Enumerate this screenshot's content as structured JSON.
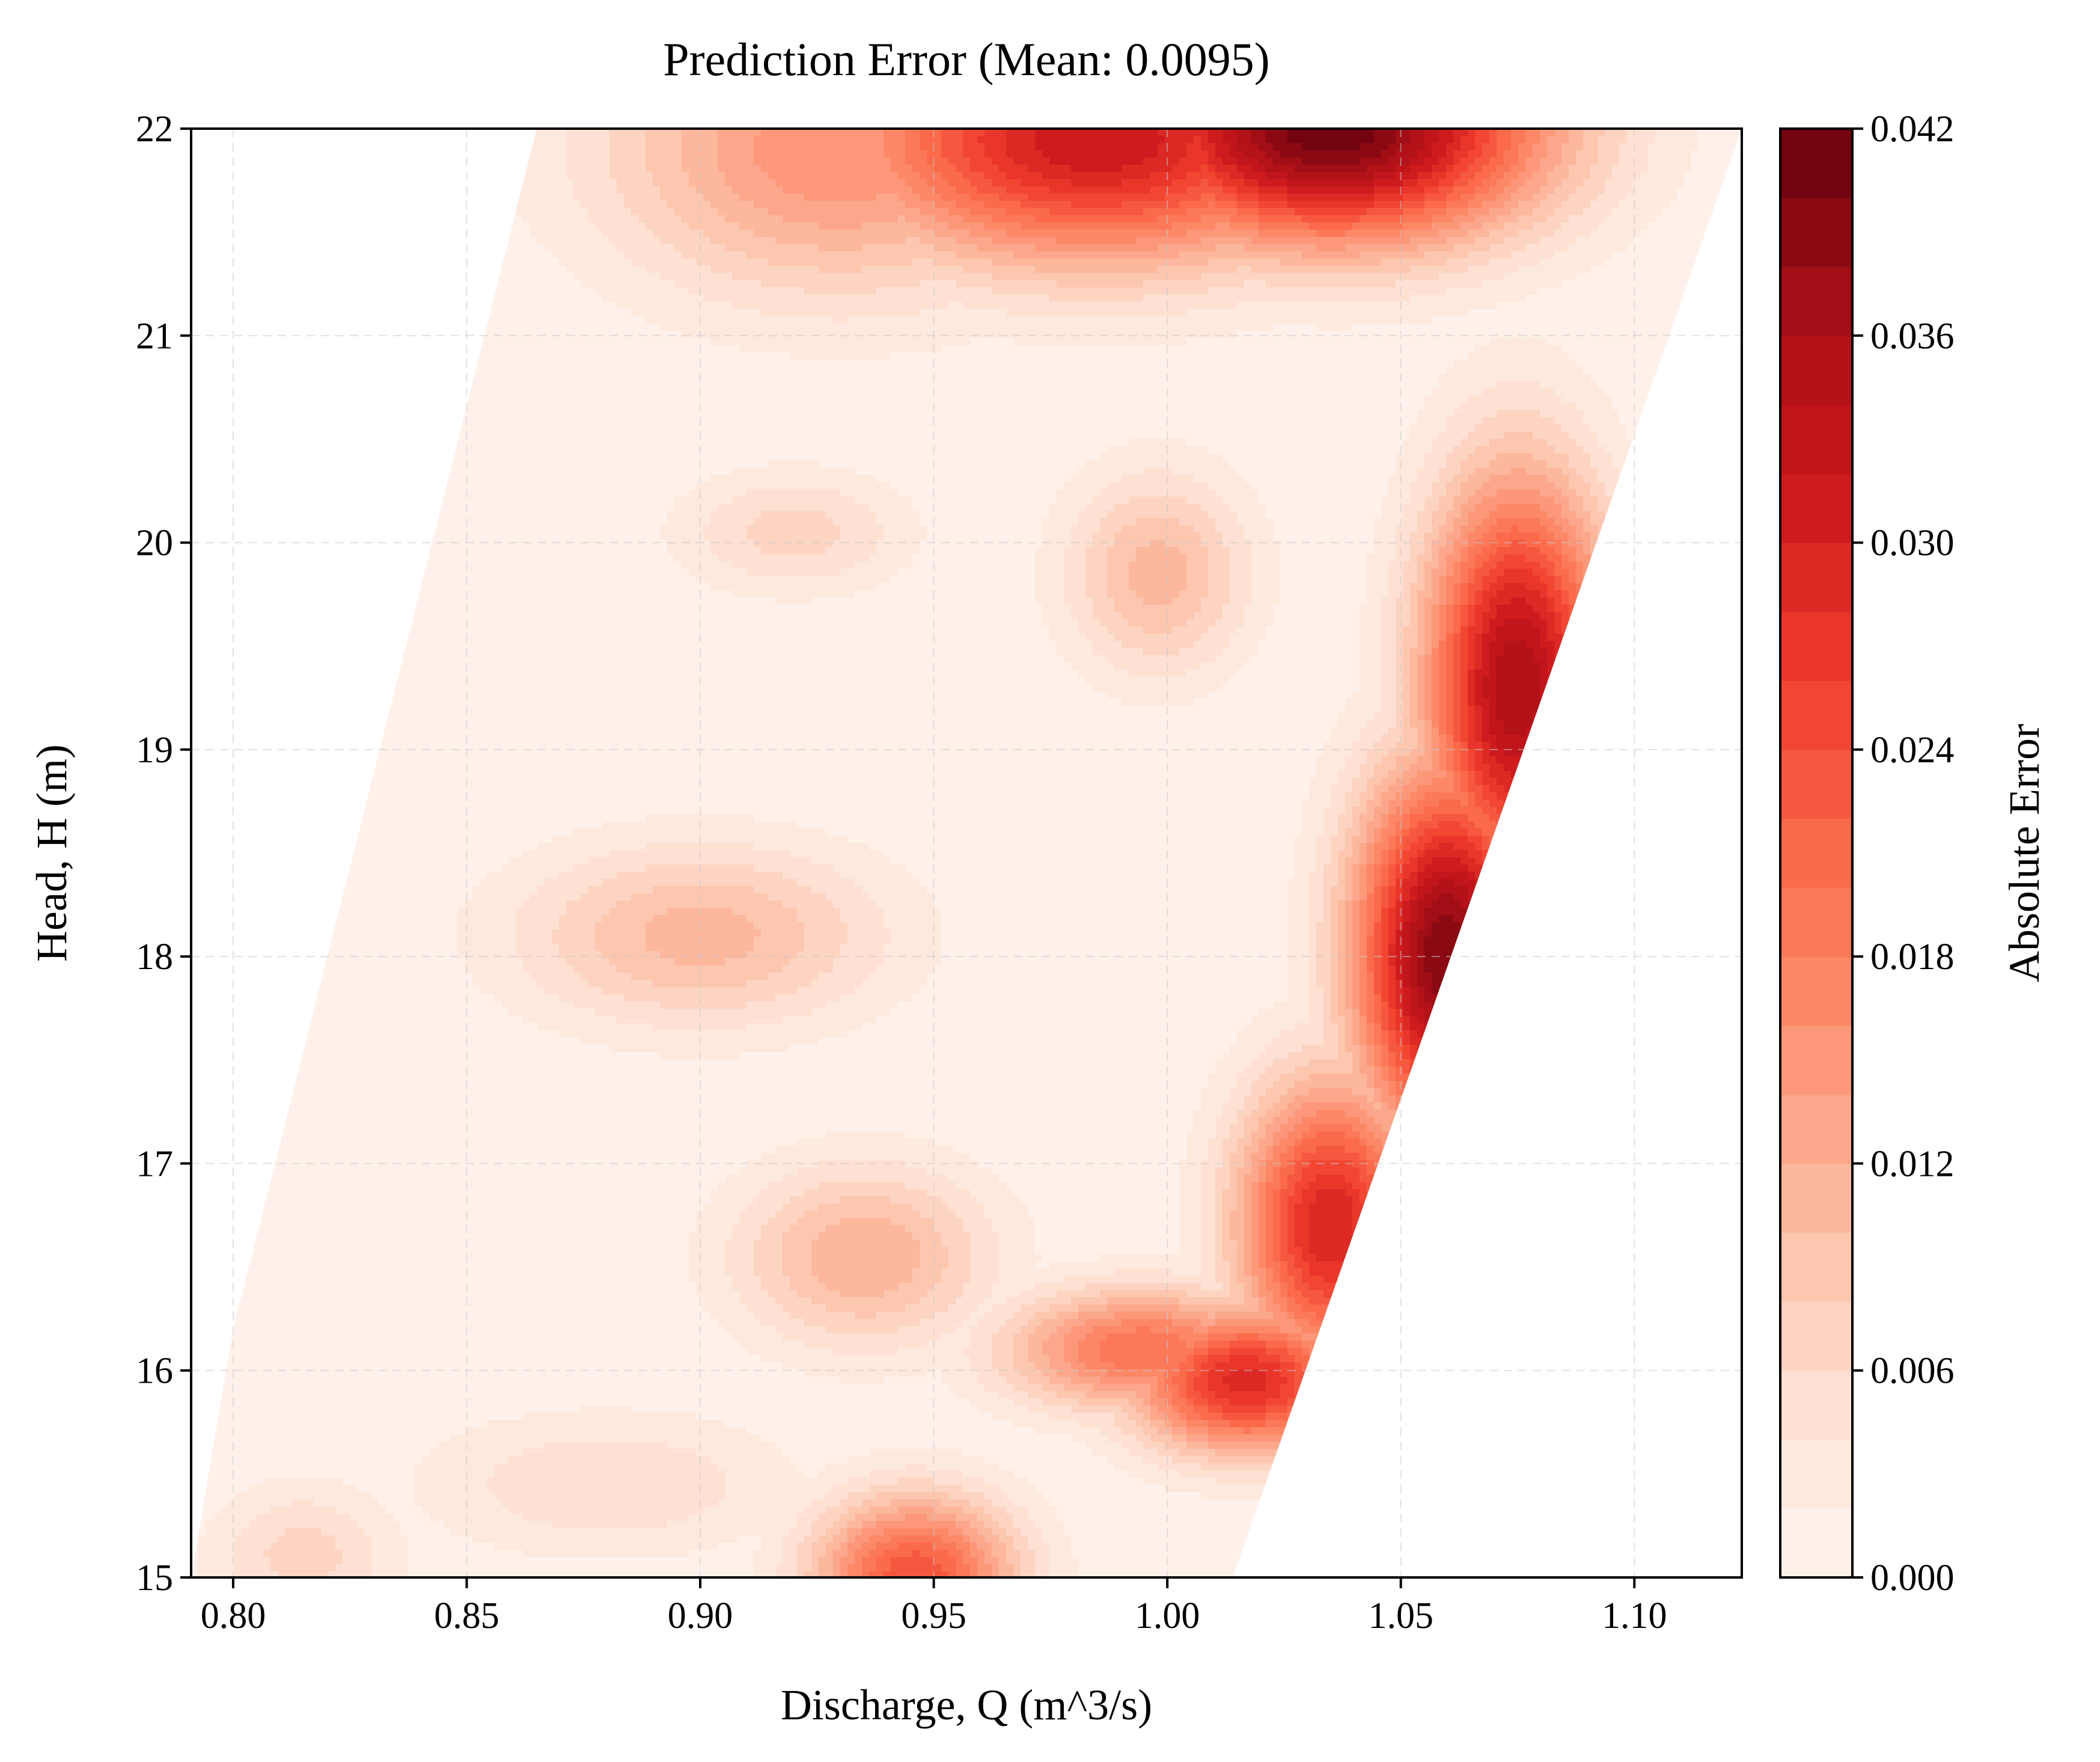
{
  "chart_data": {
    "type": "heatmap",
    "subtype": "filled-contour",
    "title": "Prediction Error (Mean: 0.0095)",
    "xlabel": "Discharge, Q (m^3/s)",
    "ylabel": "Head, H (m)",
    "xlim": [
      0.791,
      1.123
    ],
    "ylim": [
      15,
      22
    ],
    "xticks": [
      "0.80",
      "0.85",
      "0.90",
      "0.95",
      "1.00",
      "1.05",
      "1.10"
    ],
    "yticks": [
      "15",
      "16",
      "17",
      "18",
      "19",
      "20",
      "21",
      "22"
    ],
    "grid": true,
    "colormap": "Reds",
    "colorbar": {
      "label": "Absolute Error",
      "range": [
        0.0,
        0.042
      ],
      "ticks": [
        "0.000",
        "0.006",
        "0.012",
        "0.018",
        "0.024",
        "0.030",
        "0.036",
        "0.042"
      ],
      "levels": 21
    },
    "mean_error": 0.0095,
    "domain_boundary": {
      "left_edge": [
        [
          0.791,
          15.0
        ],
        [
          0.8,
          16.2
        ],
        [
          0.865,
          22.0
        ]
      ],
      "right_edge": [
        [
          1.014,
          15.0
        ],
        [
          1.123,
          22.0
        ]
      ]
    },
    "error_features": [
      {
        "q": 1.035,
        "h": 22.0,
        "error": 0.042,
        "spread_q": 0.045,
        "spread_h": 0.55
      },
      {
        "q": 0.985,
        "h": 21.95,
        "error": 0.032,
        "spread_q": 0.055,
        "spread_h": 0.6
      },
      {
        "q": 0.93,
        "h": 21.9,
        "error": 0.016,
        "spread_q": 0.05,
        "spread_h": 0.7
      },
      {
        "q": 1.06,
        "h": 18.0,
        "error": 0.04,
        "spread_q": 0.02,
        "spread_h": 0.9
      },
      {
        "q": 1.075,
        "h": 19.3,
        "error": 0.036,
        "spread_q": 0.02,
        "spread_h": 1.0
      },
      {
        "q": 1.035,
        "h": 16.7,
        "error": 0.03,
        "spread_q": 0.02,
        "spread_h": 0.7
      },
      {
        "q": 1.017,
        "h": 15.95,
        "error": 0.029,
        "spread_q": 0.025,
        "spread_h": 0.35
      },
      {
        "q": 0.995,
        "h": 16.1,
        "error": 0.02,
        "spread_q": 0.03,
        "spread_h": 0.3
      },
      {
        "q": 0.946,
        "h": 15.0,
        "error": 0.024,
        "spread_q": 0.022,
        "spread_h": 0.4
      },
      {
        "q": 0.9,
        "h": 18.1,
        "error": 0.011,
        "spread_q": 0.04,
        "spread_h": 0.45
      },
      {
        "q": 0.998,
        "h": 19.85,
        "error": 0.011,
        "spread_q": 0.02,
        "spread_h": 0.5
      },
      {
        "q": 0.935,
        "h": 16.55,
        "error": 0.012,
        "spread_q": 0.028,
        "spread_h": 0.45
      },
      {
        "q": 0.92,
        "h": 20.05,
        "error": 0.007,
        "spread_q": 0.025,
        "spread_h": 0.3
      },
      {
        "q": 0.815,
        "h": 15.1,
        "error": 0.007,
        "spread_q": 0.02,
        "spread_h": 0.35
      },
      {
        "q": 0.88,
        "h": 15.45,
        "error": 0.006,
        "spread_q": 0.04,
        "spread_h": 0.35
      }
    ]
  }
}
